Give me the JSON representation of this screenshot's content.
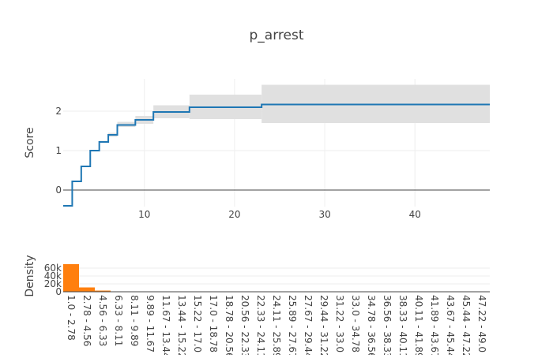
{
  "chart_data": [
    {
      "type": "line",
      "subtype": "step-with-confidence-band",
      "title": "p_arrest",
      "xlabel": "",
      "ylabel": "Score",
      "xlim": [
        1,
        48.3
      ],
      "ylim": [
        -0.42,
        2.82
      ],
      "xticks": [
        10,
        20,
        30,
        40
      ],
      "yticks": [
        0,
        1,
        2
      ],
      "grid": true,
      "zero_line": true,
      "colors": {
        "line": "#1f77b4",
        "band": "#e0e0e0"
      },
      "series": [
        {
          "x": [
            1.0,
            2.0,
            3.0,
            4.0,
            5.0,
            6.0,
            7.0,
            9.0,
            11.0,
            15.0,
            23.0,
            48.3
          ],
          "y": [
            -0.4,
            0.22,
            0.6,
            1.0,
            1.22,
            1.4,
            1.65,
            1.78,
            1.98,
            2.1,
            2.17,
            2.17
          ],
          "lower": [
            -0.4,
            0.22,
            0.6,
            1.0,
            1.2,
            1.35,
            1.6,
            1.68,
            1.82,
            1.8,
            1.7,
            1.7
          ],
          "upper": [
            -0.4,
            0.22,
            0.6,
            1.0,
            1.25,
            1.45,
            1.73,
            1.88,
            2.15,
            2.42,
            2.67,
            2.67
          ]
        }
      ]
    },
    {
      "type": "bar",
      "xlabel": "",
      "ylabel": "Density",
      "ylim": [
        0,
        80000
      ],
      "yticks": [
        0,
        20000,
        40000,
        60000
      ],
      "ytick_labels": [
        "0",
        "20k",
        "40k",
        "60k"
      ],
      "colors": {
        "bar": "#ff7f0e"
      },
      "categories": [
        "1.0 - 2.78",
        "2.78 - 4.56",
        "4.56 - 6.33",
        "6.33 - 8.11",
        "8.11 - 9.89",
        "9.89 - 11.67",
        "11.67 - 13.44",
        "13.44 - 15.22",
        "15.22 - 17.0",
        "17.0 - 18.78",
        "18.78 - 20.56",
        "20.56 - 22.33",
        "22.33 - 24.11",
        "24.11 - 25.89",
        "25.89 - 27.67",
        "27.67 - 29.44",
        "29.44 - 31.22",
        "31.22 - 33.0",
        "33.0 - 34.78",
        "34.78 - 36.56",
        "36.56 - 38.33",
        "38.33 - 40.11",
        "40.11 - 41.89",
        "41.89 - 43.67",
        "43.67 - 45.44",
        "45.44 - 47.22",
        "47.22 - 49.0"
      ],
      "values": [
        70000,
        11000,
        3000,
        800,
        300,
        200,
        100,
        50,
        30,
        20,
        10,
        10,
        5,
        5,
        5,
        5,
        5,
        5,
        5,
        5,
        5,
        5,
        5,
        5,
        5,
        5,
        5
      ]
    }
  ]
}
